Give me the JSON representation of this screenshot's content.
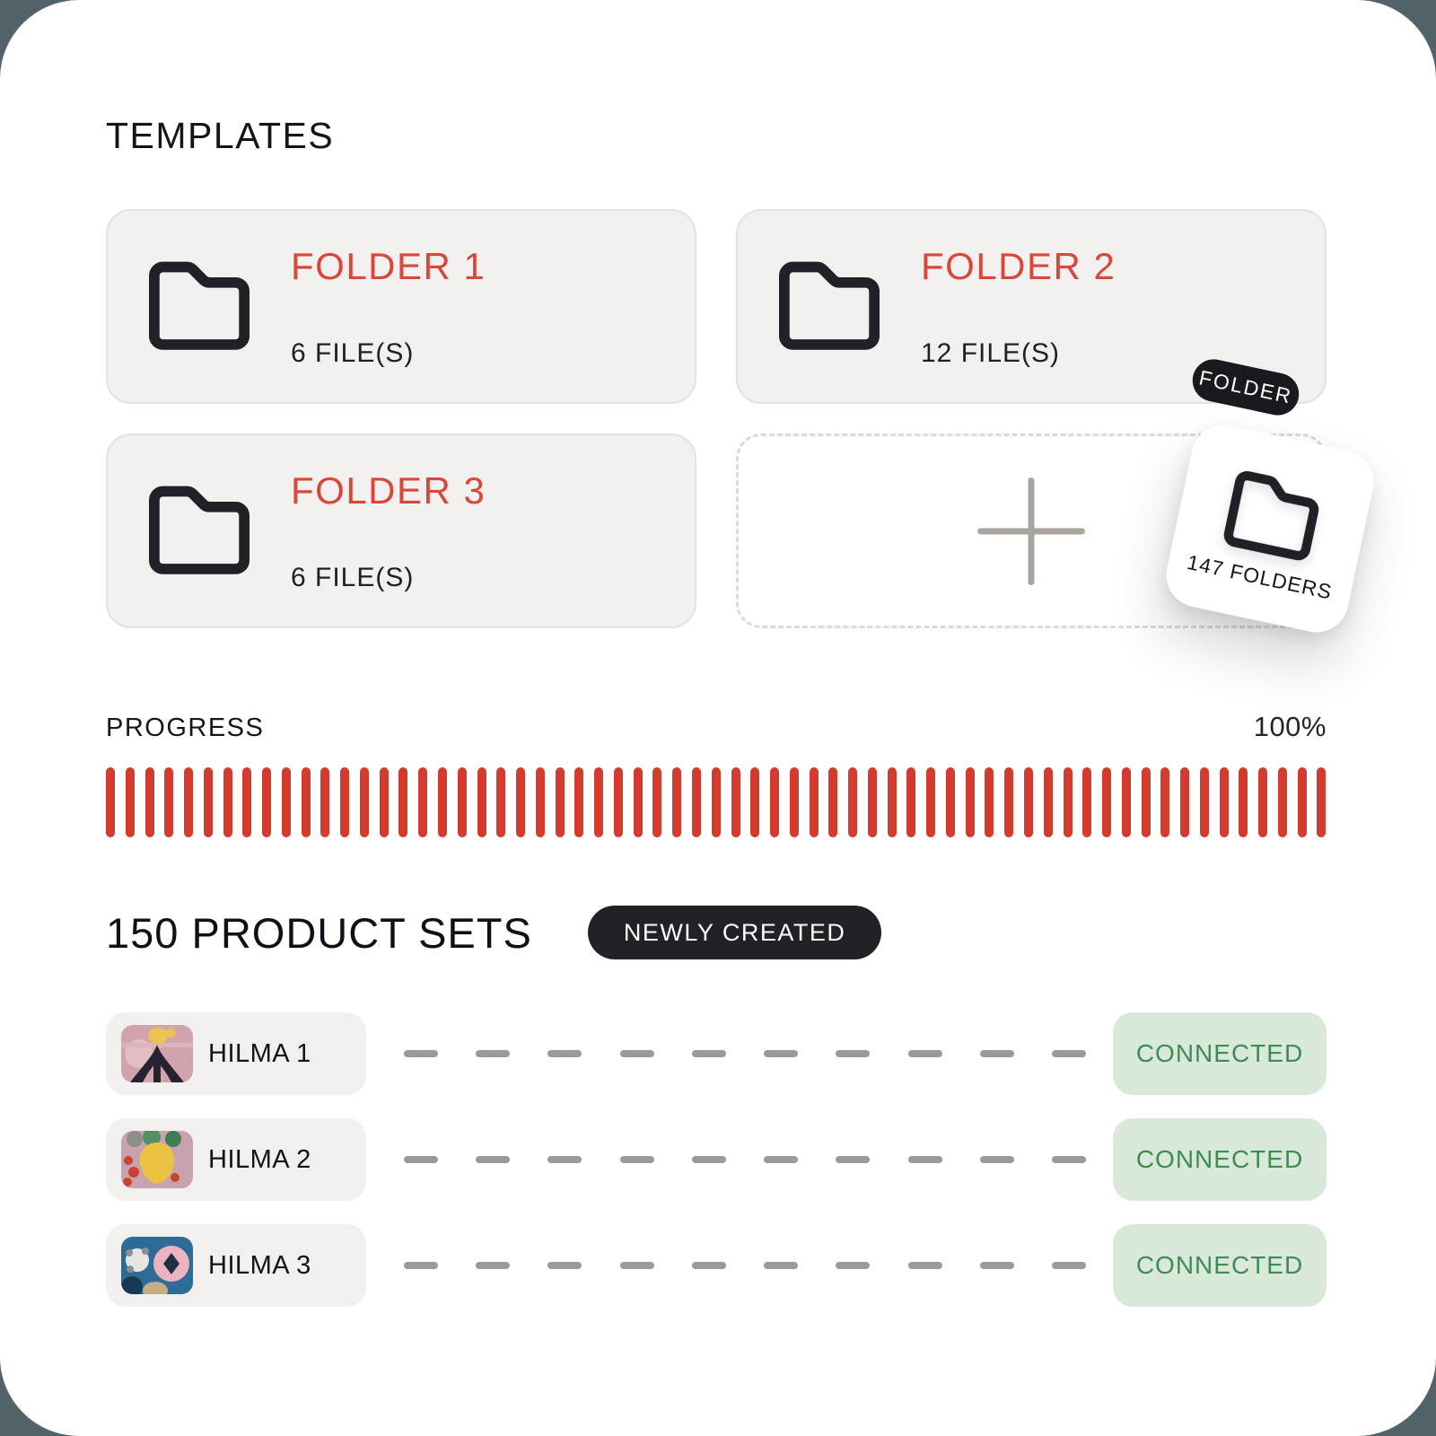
{
  "colors": {
    "accent_red": "#d8483a",
    "bar_red": "#d23b2e",
    "ink": "#201d23",
    "card_bg": "#f2f1ef",
    "card_border": "#e4e2df",
    "badge_green_bg": "#d8e9d9",
    "badge_green_text": "#3f8b55",
    "pill_black": "#1b191e",
    "page_bg": "#516369"
  },
  "templates": {
    "heading": "TEMPLATES",
    "folders": [
      {
        "name": "FOLDER 1",
        "files": "6 FILE(S)"
      },
      {
        "name": "FOLDER 2",
        "files": "12 FILE(S)"
      },
      {
        "name": "FOLDER 3",
        "files": "6 FILE(S)"
      }
    ],
    "floating_card": {
      "tag": "FOLDER",
      "label": "147 FOLDERS"
    }
  },
  "progress": {
    "label": "PROGRESS",
    "value": "100%",
    "percent": 100,
    "bar_count": 63
  },
  "product_sets": {
    "heading": "150 PRODUCT SETS",
    "badge": "NEWLY CREATED",
    "connector_dash_count": 10,
    "rows": [
      {
        "name": "HILMA 1",
        "status": "CONNECTED"
      },
      {
        "name": "HILMA 2",
        "status": "CONNECTED"
      },
      {
        "name": "HILMA 3",
        "status": "CONNECTED"
      }
    ]
  }
}
